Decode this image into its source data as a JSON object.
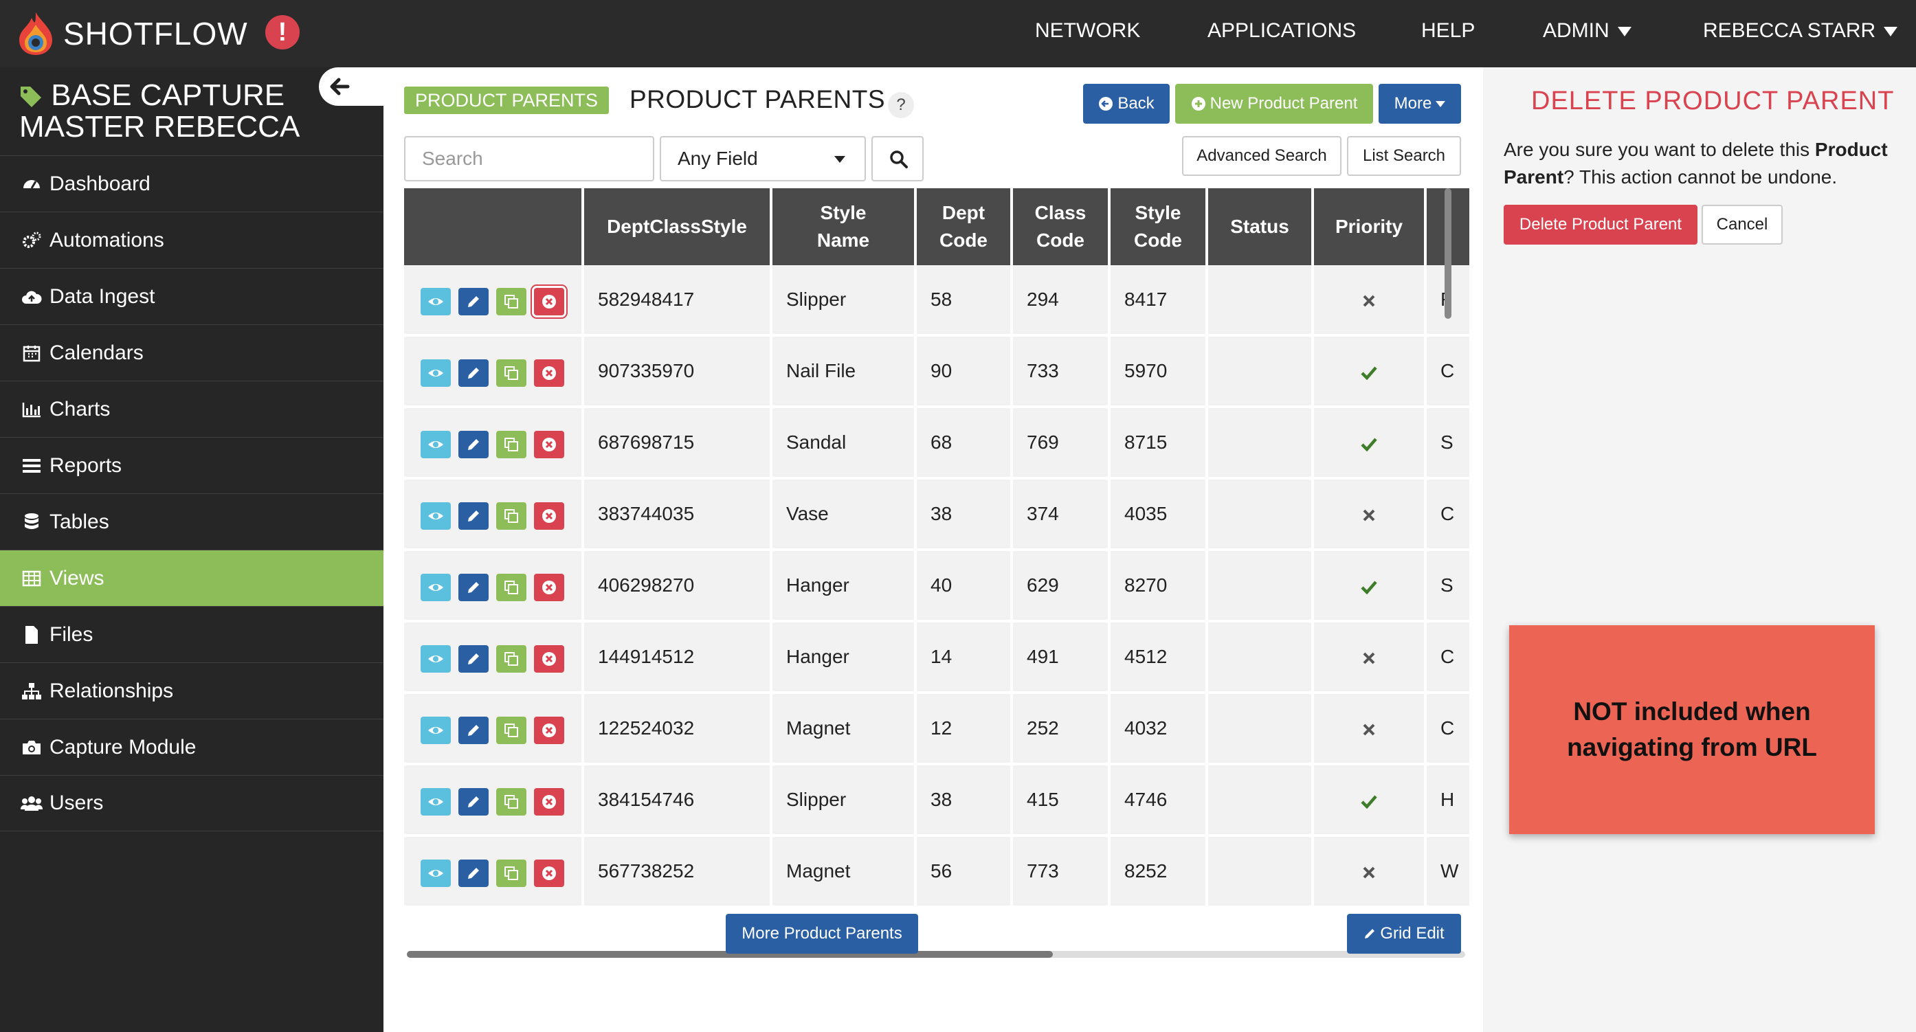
{
  "topbar": {
    "logo_text": "SHOTFLOW",
    "alert": "!",
    "nav": [
      "NETWORK",
      "APPLICATIONS",
      "HELP"
    ],
    "admin": "ADMIN",
    "user": "REBECCA STARR"
  },
  "sidebar": {
    "title_line1": "BASE CAPTURE",
    "title_line2": "MASTER REBECCA",
    "items": [
      {
        "label": "Dashboard",
        "icon": "dashboard-icon"
      },
      {
        "label": "Automations",
        "icon": "cogs-icon"
      },
      {
        "label": "Data Ingest",
        "icon": "cloud-upload-icon"
      },
      {
        "label": "Calendars",
        "icon": "calendar-icon"
      },
      {
        "label": "Charts",
        "icon": "bar-chart-icon"
      },
      {
        "label": "Reports",
        "icon": "list-icon"
      },
      {
        "label": "Tables",
        "icon": "database-icon"
      },
      {
        "label": "Views",
        "icon": "table-icon",
        "active": true
      },
      {
        "label": "Files",
        "icon": "file-icon"
      },
      {
        "label": "Relationships",
        "icon": "sitemap-icon"
      },
      {
        "label": "Capture Module",
        "icon": "camera-icon"
      },
      {
        "label": "Users",
        "icon": "users-icon"
      }
    ]
  },
  "main": {
    "pill": "PRODUCT PARENTS",
    "title": "PRODUCT PARENTS",
    "help": "?",
    "back": "Back",
    "new_parent": "New Product Parent",
    "more": "More",
    "search_placeholder": "Search",
    "field_select": "Any Field",
    "advanced_search": "Advanced Search",
    "list_search": "List Search",
    "more_parents": "More Product Parents",
    "grid_edit": "Grid Edit",
    "columns": [
      "DeptClassStyle",
      "Style Name",
      "Dept Code",
      "Class Code",
      "Style Code",
      "Status",
      "Priority",
      ""
    ],
    "rows": [
      {
        "dcs": "582948417",
        "name": "Slipper",
        "dept": "58",
        "class": "294",
        "style": "8417",
        "status": "",
        "priority": "x",
        "extra": "F"
      },
      {
        "dcs": "907335970",
        "name": "Nail File",
        "dept": "90",
        "class": "733",
        "style": "5970",
        "status": "",
        "priority": "check",
        "extra": "C"
      },
      {
        "dcs": "687698715",
        "name": "Sandal",
        "dept": "68",
        "class": "769",
        "style": "8715",
        "status": "",
        "priority": "check",
        "extra": "S"
      },
      {
        "dcs": "383744035",
        "name": "Vase",
        "dept": "38",
        "class": "374",
        "style": "4035",
        "status": "",
        "priority": "x",
        "extra": "C"
      },
      {
        "dcs": "406298270",
        "name": "Hanger",
        "dept": "40",
        "class": "629",
        "style": "8270",
        "status": "",
        "priority": "check",
        "extra": "S"
      },
      {
        "dcs": "144914512",
        "name": "Hanger",
        "dept": "14",
        "class": "491",
        "style": "4512",
        "status": "",
        "priority": "x",
        "extra": "C"
      },
      {
        "dcs": "122524032",
        "name": "Magnet",
        "dept": "12",
        "class": "252",
        "style": "4032",
        "status": "",
        "priority": "x",
        "extra": "C"
      },
      {
        "dcs": "384154746",
        "name": "Slipper",
        "dept": "38",
        "class": "415",
        "style": "4746",
        "status": "",
        "priority": "check",
        "extra": "H"
      },
      {
        "dcs": "567738252",
        "name": "Magnet",
        "dept": "56",
        "class": "773",
        "style": "8252",
        "status": "",
        "priority": "x",
        "extra": "W"
      }
    ]
  },
  "panel": {
    "title": "DELETE PRODUCT PARENT",
    "text_a": "Are you sure you want to delete this ",
    "text_b": "Product Parent",
    "text_c": "? This action cannot be undone.",
    "delete": "Delete Product Parent",
    "cancel": "Cancel"
  },
  "note": {
    "line1": "NOT included when",
    "line2": "navigating from URL"
  },
  "colors": {
    "brand_green": "#8cbd58",
    "primary_blue": "#2b5fa3",
    "danger_red": "#d9434f",
    "info_cyan": "#5bc0de",
    "note_red": "#ec6454"
  }
}
